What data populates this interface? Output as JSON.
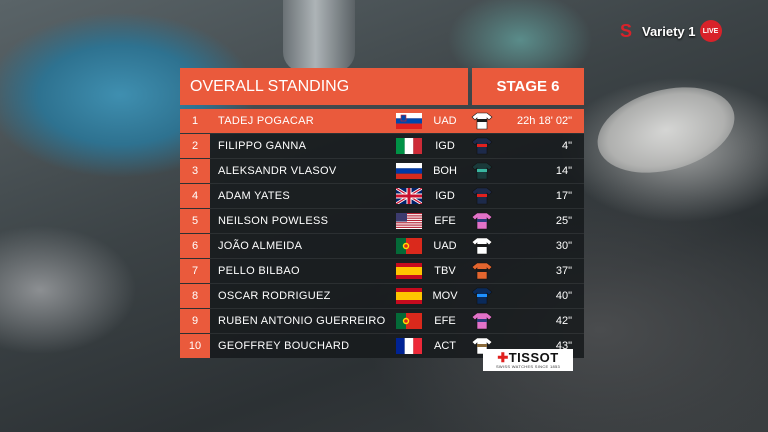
{
  "broadcast": {
    "channel": "Variety 1",
    "live_badge": "LIVE",
    "brand_color": "#d8222a"
  },
  "standings": {
    "title": "OVERALL STANDING",
    "stage": "STAGE 6",
    "accent_color": "#ea5a3c",
    "rows": [
      {
        "pos": "1",
        "name": "TADEJ POGACAR",
        "country": "slovenia",
        "team": "UAD",
        "time": "22h 18' 02\""
      },
      {
        "pos": "2",
        "name": "FILIPPO GANNA",
        "country": "italy",
        "team": "IGD",
        "time": "4\""
      },
      {
        "pos": "3",
        "name": "ALEKSANDR VLASOV",
        "country": "russia",
        "team": "BOH",
        "time": "14\""
      },
      {
        "pos": "4",
        "name": "ADAM YATES",
        "country": "uk",
        "team": "IGD",
        "time": "17\""
      },
      {
        "pos": "5",
        "name": "NEILSON POWLESS",
        "country": "usa",
        "team": "EFE",
        "time": "25\""
      },
      {
        "pos": "6",
        "name": "JOÃO ALMEIDA",
        "country": "portugal",
        "team": "UAD",
        "time": "30\""
      },
      {
        "pos": "7",
        "name": "PELLO BILBAO",
        "country": "spain",
        "team": "TBV",
        "time": "37\""
      },
      {
        "pos": "8",
        "name": "OSCAR RODRIGUEZ",
        "country": "spain",
        "team": "MOV",
        "time": "40\""
      },
      {
        "pos": "9",
        "name": "RUBEN ANTONIO GUERREIRO",
        "country": "portugal",
        "team": "EFE",
        "time": "42\""
      },
      {
        "pos": "10",
        "name": "GEOFFREY BOUCHARD",
        "country": "france",
        "team": "ACT",
        "time": "43\""
      }
    ]
  },
  "sponsor": {
    "name": "TISSOT",
    "tagline": "SWISS WATCHES SINCE 1853"
  }
}
